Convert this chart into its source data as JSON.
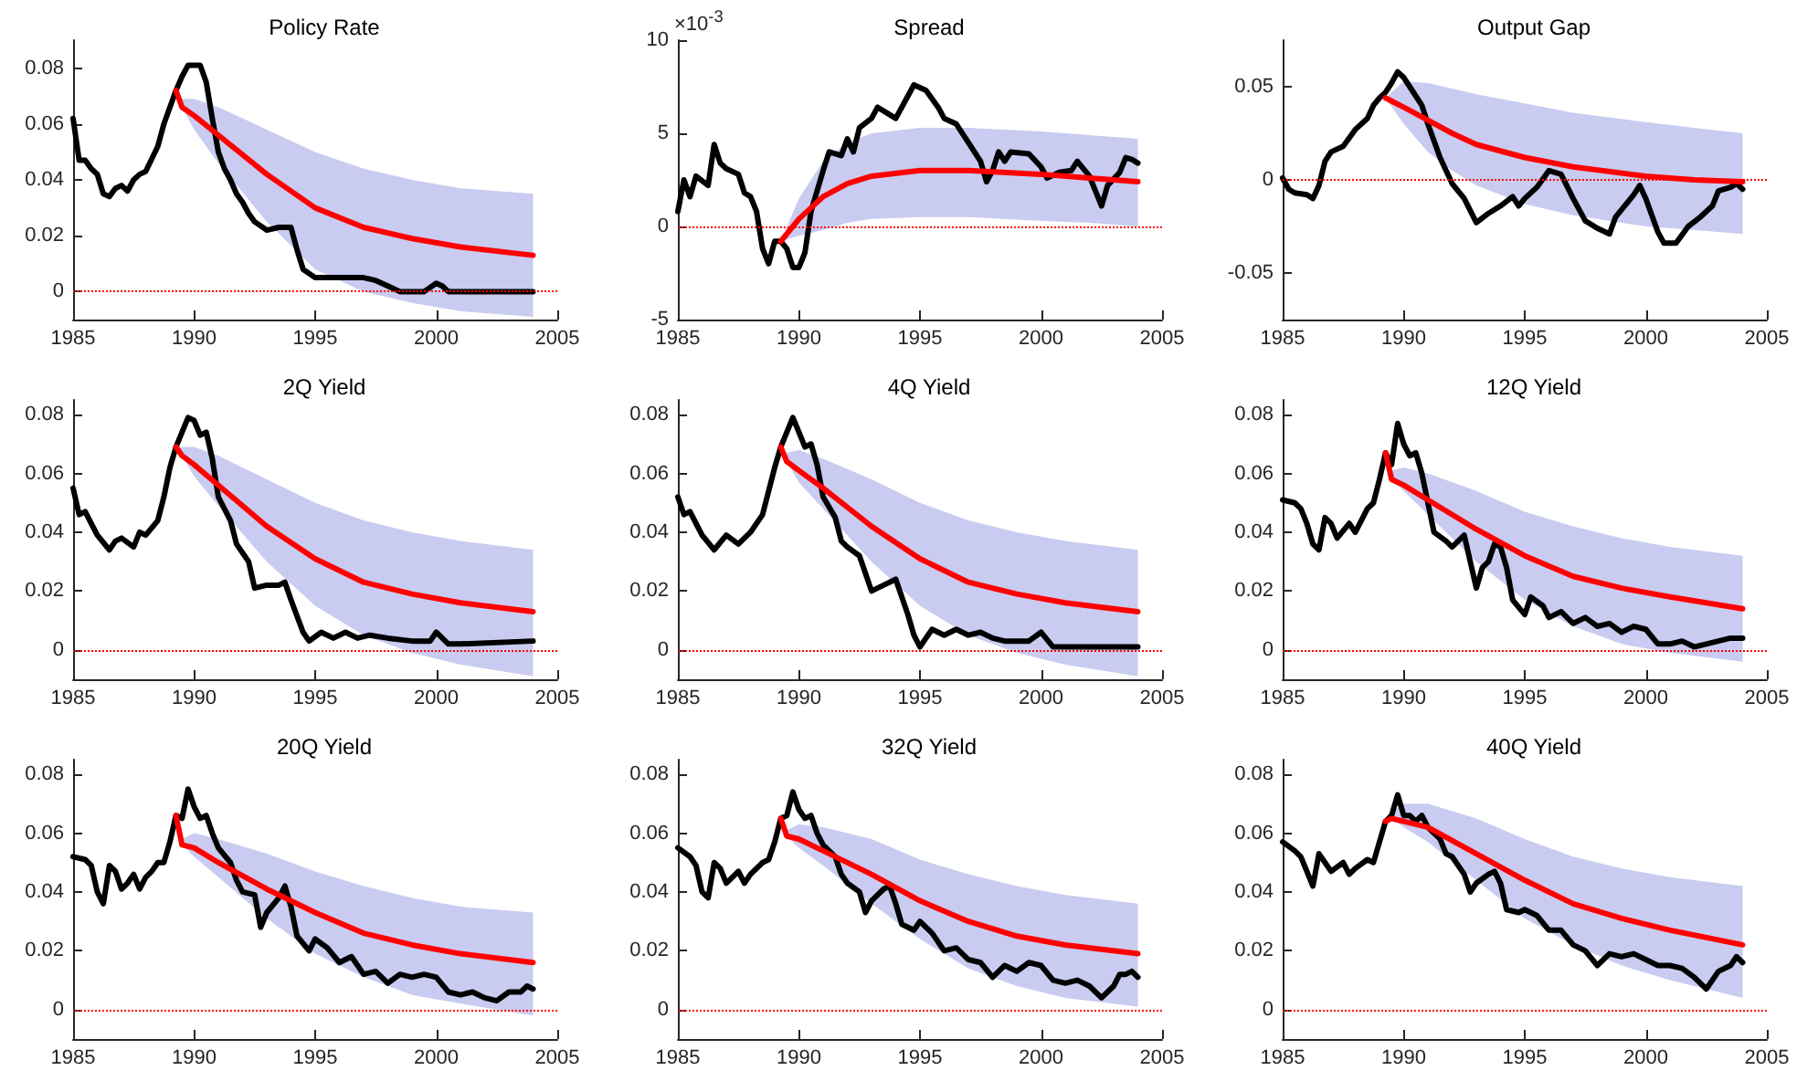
{
  "chart_data": [
    {
      "type": "line",
      "title": "Policy Rate",
      "xlim": [
        1985,
        2005
      ],
      "xticks": [
        1985,
        1990,
        1995,
        2000,
        2005
      ],
      "ylim": [
        -0.01,
        0.09
      ],
      "yticks": [
        0,
        0.02,
        0.04,
        0.06,
        0.08
      ],
      "marker": "none",
      "line_style": "solid",
      "ref_lines": [
        {
          "axis": "y",
          "value": 0,
          "color": "#ff0000",
          "line_style": "dotted"
        }
      ],
      "series": [
        {
          "color": "#000000",
          "x": [
            1985,
            1985.25,
            1985.5,
            1985.75,
            1986,
            1986.25,
            1986.5,
            1986.75,
            1987,
            1987.25,
            1987.5,
            1987.75,
            1988,
            1988.5,
            1988.75,
            1989,
            1989.25,
            1989.5,
            1989.75,
            1990.25,
            1990.5,
            1990.75,
            1991,
            1991.25,
            1991.5,
            1991.75,
            1992,
            1992.25,
            1992.5,
            1993,
            1993.5,
            1994,
            1994.25,
            1994.5,
            1995,
            1996,
            1997,
            1997.5,
            1998,
            1998.5,
            1999,
            1999.5,
            2000,
            2000.25,
            2000.5,
            2001,
            2004
          ],
          "values": [
            0.062,
            0.047,
            0.047,
            0.044,
            0.042,
            0.035,
            0.034,
            0.037,
            0.038,
            0.036,
            0.04,
            0.042,
            0.043,
            0.052,
            0.06,
            0.066,
            0.072,
            0.077,
            0.081,
            0.081,
            0.075,
            0.062,
            0.05,
            0.044,
            0.04,
            0.035,
            0.032,
            0.028,
            0.025,
            0.022,
            0.023,
            0.023,
            0.015,
            0.008,
            0.005,
            0.005,
            0.005,
            0.004,
            0.002,
            0,
            0,
            0,
            0.003,
            0.002,
            0,
            0,
            0
          ]
        },
        {
          "color": "#ff0000",
          "x": [
            1989.25,
            1989.5,
            1990,
            1991,
            1993,
            1995,
            1997,
            1999,
            2001,
            2004
          ],
          "values": [
            0.072,
            0.066,
            0.063,
            0.056,
            0.042,
            0.03,
            0.023,
            0.019,
            0.016,
            0.013
          ],
          "lower": [
            0.072,
            0.066,
            0.058,
            0.046,
            0.025,
            0.008,
            0,
            -0.004,
            -0.007,
            -0.009
          ],
          "upper": [
            0.072,
            0.069,
            0.069,
            0.066,
            0.058,
            0.05,
            0.044,
            0.04,
            0.037,
            0.035
          ]
        }
      ]
    },
    {
      "type": "line",
      "title": "Spread",
      "annotations": [
        "×10$^{-3}$"
      ],
      "xlim": [
        1985,
        2005
      ],
      "xticks": [
        1985,
        1990,
        1995,
        2000,
        2005
      ],
      "ylim": [
        -5,
        10
      ],
      "yticks": [
        -5,
        0,
        5,
        10
      ],
      "marker": "none",
      "line_style": "solid",
      "ref_lines": [
        {
          "axis": "y",
          "value": 0,
          "color": "#ff0000",
          "line_style": "dotted"
        }
      ],
      "series": [
        {
          "color": "#000000",
          "x": [
            1985,
            1985.25,
            1985.5,
            1985.75,
            1986.25,
            1986.5,
            1986.75,
            1987,
            1987.5,
            1987.75,
            1988,
            1988.25,
            1988.5,
            1988.75,
            1989,
            1989.25,
            1989.5,
            1989.75,
            1990,
            1990.25,
            1990.5,
            1991,
            1991.25,
            1991.75,
            1992,
            1992.25,
            1992.5,
            1993,
            1993.25,
            1993.75,
            1994,
            1994.5,
            1994.75,
            1995.25,
            1995.75,
            1996,
            1996.5,
            1997,
            1997.5,
            1997.75,
            1998,
            1998.25,
            1998.5,
            1998.75,
            1999.5,
            2000,
            2000.25,
            2000.75,
            2001.25,
            2001.5,
            2002,
            2002.5,
            2002.75,
            2003.25,
            2003.5,
            2003.75,
            2004
          ],
          "values": [
            0.8,
            2.5,
            1.6,
            2.7,
            2.2,
            4.4,
            3.4,
            3.1,
            2.8,
            1.8,
            1.6,
            0.8,
            -1.2,
            -2,
            -0.8,
            -0.8,
            -1.2,
            -2.2,
            -2.2,
            -1.4,
            0.8,
            3,
            4,
            3.8,
            4.7,
            4,
            5.3,
            5.8,
            6.4,
            6,
            5.8,
            7,
            7.6,
            7.3,
            6.4,
            5.8,
            5.5,
            4.5,
            3.5,
            2.4,
            3,
            4,
            3.5,
            4,
            3.9,
            3.2,
            2.6,
            2.9,
            3,
            3.5,
            2.7,
            1.1,
            2.2,
            2.9,
            3.7,
            3.6,
            3.4
          ]
        },
        {
          "color": "#ff0000",
          "x": [
            1989.25,
            1990,
            1991,
            1992,
            1993,
            1995,
            1997,
            2000,
            2002,
            2004
          ],
          "values": [
            -0.8,
            0.4,
            1.6,
            2.3,
            2.7,
            3,
            3,
            2.8,
            2.6,
            2.4
          ],
          "lower": [
            -0.8,
            -0.5,
            -0.2,
            0.2,
            0.4,
            0.5,
            0.5,
            0.3,
            0.2,
            0
          ],
          "upper": [
            -0.8,
            1.5,
            3.5,
            4.5,
            5,
            5.3,
            5.3,
            5.1,
            4.9,
            4.7
          ]
        }
      ]
    },
    {
      "type": "line",
      "title": "Output Gap",
      "xlim": [
        1985,
        2005
      ],
      "xticks": [
        1985,
        1990,
        1995,
        2000,
        2005
      ],
      "ylim": [
        -0.075,
        0.075
      ],
      "yticks": [
        -0.05,
        0,
        0.05
      ],
      "marker": "none",
      "line_style": "solid",
      "ref_lines": [
        {
          "axis": "y",
          "value": 0,
          "color": "#ff0000",
          "line_style": "dotted"
        }
      ],
      "series": [
        {
          "color": "#000000",
          "x": [
            1985,
            1985.25,
            1985.5,
            1986,
            1986.25,
            1986.5,
            1986.75,
            1987,
            1987.5,
            1988,
            1988.5,
            1988.75,
            1989,
            1989.25,
            1989.5,
            1989.75,
            1990,
            1990.25,
            1990.75,
            1991,
            1991.5,
            1992,
            1992.5,
            1993,
            1993.5,
            1994,
            1994.5,
            1994.75,
            1995,
            1995.5,
            1996,
            1996.5,
            1997,
            1997.5,
            1998,
            1998.5,
            1998.75,
            1999,
            1999.5,
            1999.75,
            2000,
            2000.5,
            2000.75,
            2001.25,
            2001.75,
            2002.25,
            2002.75,
            2003,
            2003.5,
            2003.75,
            2004
          ],
          "values": [
            0.001,
            -0.005,
            -0.007,
            -0.008,
            -0.01,
            -0.003,
            0.01,
            0.015,
            0.018,
            0.027,
            0.033,
            0.04,
            0.044,
            0.047,
            0.052,
            0.058,
            0.055,
            0.05,
            0.04,
            0.03,
            0.012,
            -0.002,
            -0.01,
            -0.023,
            -0.018,
            -0.014,
            -0.009,
            -0.014,
            -0.01,
            -0.004,
            0.005,
            0.003,
            -0.01,
            -0.022,
            -0.026,
            -0.029,
            -0.02,
            -0.016,
            -0.008,
            -0.003,
            -0.01,
            -0.028,
            -0.034,
            -0.034,
            -0.025,
            -0.02,
            -0.014,
            -0.006,
            -0.004,
            -0.002,
            -0.005
          ]
        },
        {
          "color": "#ff0000",
          "x": [
            1989.25,
            1990,
            1991,
            1992,
            1993,
            1995,
            1997,
            2000,
            2002,
            2004
          ],
          "values": [
            0.044,
            0.039,
            0.032,
            0.025,
            0.019,
            0.012,
            0.007,
            0.002,
            0,
            -0.001
          ],
          "lower": [
            0.044,
            0.03,
            0.015,
            0.005,
            -0.003,
            -0.013,
            -0.019,
            -0.025,
            -0.027,
            -0.029
          ],
          "upper": [
            0.044,
            0.053,
            0.052,
            0.049,
            0.046,
            0.041,
            0.036,
            0.031,
            0.028,
            0.025
          ]
        }
      ]
    },
    {
      "type": "line",
      "title": "2Q Yield",
      "xlim": [
        1985,
        2005
      ],
      "xticks": [
        1985,
        1990,
        1995,
        2000,
        2005
      ],
      "ylim": [
        -0.01,
        0.085
      ],
      "yticks": [
        0,
        0.02,
        0.04,
        0.06,
        0.08
      ],
      "marker": "none",
      "line_style": "solid",
      "ref_lines": [
        {
          "axis": "y",
          "value": 0,
          "color": "#ff0000",
          "line_style": "dotted"
        }
      ],
      "series": [
        {
          "color": "#000000",
          "x": [
            1985,
            1985.25,
            1985.5,
            1985.75,
            1986,
            1986.5,
            1986.75,
            1987,
            1987.5,
            1987.75,
            1988,
            1988.5,
            1988.75,
            1989,
            1989.25,
            1989.5,
            1989.75,
            1990,
            1990.25,
            1990.5,
            1990.75,
            1991,
            1991.5,
            1991.75,
            1992,
            1992.25,
            1992.5,
            1993,
            1993.5,
            1993.75,
            1994,
            1994.5,
            1994.75,
            1995.25,
            1995.75,
            1996.25,
            1996.75,
            1997.25,
            1998,
            1999,
            1999.75,
            2000,
            2000.5,
            2001,
            2004
          ],
          "values": [
            0.055,
            0.046,
            0.047,
            0.043,
            0.039,
            0.034,
            0.037,
            0.038,
            0.035,
            0.04,
            0.039,
            0.044,
            0.052,
            0.062,
            0.069,
            0.074,
            0.079,
            0.078,
            0.073,
            0.074,
            0.065,
            0.052,
            0.044,
            0.036,
            0.033,
            0.03,
            0.021,
            0.022,
            0.022,
            0.023,
            0.017,
            0.006,
            0.003,
            0.006,
            0.004,
            0.006,
            0.004,
            0.005,
            0.004,
            0.003,
            0.003,
            0.006,
            0.002,
            0.002,
            0.003
          ]
        },
        {
          "color": "#ff0000",
          "x": [
            1989.25,
            1989.5,
            1990,
            1991,
            1993,
            1995,
            1997,
            1999,
            2001,
            2004
          ],
          "values": [
            0.069,
            0.066,
            0.063,
            0.056,
            0.042,
            0.031,
            0.023,
            0.019,
            0.016,
            0.013
          ],
          "lower": [
            0.069,
            0.066,
            0.059,
            0.049,
            0.03,
            0.015,
            0.005,
            -0.001,
            -0.005,
            -0.009
          ],
          "upper": [
            0.069,
            0.069,
            0.069,
            0.066,
            0.058,
            0.05,
            0.044,
            0.04,
            0.037,
            0.034
          ]
        }
      ]
    },
    {
      "type": "line",
      "title": "4Q Yield",
      "xlim": [
        1985,
        2005
      ],
      "xticks": [
        1985,
        1990,
        1995,
        2000,
        2005
      ],
      "ylim": [
        -0.01,
        0.085
      ],
      "yticks": [
        0,
        0.02,
        0.04,
        0.06,
        0.08
      ],
      "marker": "none",
      "line_style": "solid",
      "ref_lines": [
        {
          "axis": "y",
          "value": 0,
          "color": "#ff0000",
          "line_style": "dotted"
        }
      ],
      "series": [
        {
          "color": "#000000",
          "x": [
            1985,
            1985.25,
            1985.5,
            1986,
            1986.5,
            1987,
            1987.5,
            1988,
            1988.5,
            1988.75,
            1989,
            1989.25,
            1989.5,
            1989.75,
            1990,
            1990.25,
            1990.5,
            1990.75,
            1991,
            1991.5,
            1991.75,
            1992,
            1992.5,
            1993,
            1993.5,
            1994,
            1994.5,
            1994.75,
            1995,
            1995.5,
            1996,
            1996.5,
            1997,
            1997.5,
            1998,
            1998.5,
            1999.5,
            2000,
            2000.5,
            2004
          ],
          "values": [
            0.052,
            0.046,
            0.047,
            0.039,
            0.034,
            0.039,
            0.036,
            0.04,
            0.046,
            0.054,
            0.062,
            0.069,
            0.074,
            0.079,
            0.074,
            0.069,
            0.07,
            0.063,
            0.052,
            0.045,
            0.037,
            0.035,
            0.032,
            0.02,
            0.022,
            0.024,
            0.012,
            0.005,
            0.001,
            0.007,
            0.005,
            0.007,
            0.005,
            0.006,
            0.004,
            0.003,
            0.003,
            0.006,
            0.001,
            0.001
          ]
        },
        {
          "color": "#ff0000",
          "x": [
            1989.25,
            1989.5,
            1990,
            1991,
            1993,
            1995,
            1997,
            1999,
            2001,
            2004
          ],
          "values": [
            0.069,
            0.064,
            0.061,
            0.055,
            0.042,
            0.031,
            0.023,
            0.019,
            0.016,
            0.013
          ],
          "lower": [
            0.069,
            0.064,
            0.057,
            0.048,
            0.03,
            0.015,
            0.005,
            -0.001,
            -0.005,
            -0.009
          ],
          "upper": [
            0.069,
            0.067,
            0.068,
            0.065,
            0.058,
            0.05,
            0.044,
            0.04,
            0.037,
            0.034
          ]
        }
      ]
    },
    {
      "type": "line",
      "title": "12Q Yield",
      "xlim": [
        1985,
        2005
      ],
      "xticks": [
        1985,
        1990,
        1995,
        2000,
        2005
      ],
      "ylim": [
        -0.01,
        0.085
      ],
      "yticks": [
        0,
        0.02,
        0.04,
        0.06,
        0.08
      ],
      "marker": "none",
      "line_style": "solid",
      "ref_lines": [
        {
          "axis": "y",
          "value": 0,
          "color": "#ff0000",
          "line_style": "dotted"
        }
      ],
      "series": [
        {
          "color": "#000000",
          "x": [
            1985,
            1985.5,
            1985.75,
            1986,
            1986.25,
            1986.5,
            1986.75,
            1987,
            1987.25,
            1987.75,
            1988,
            1988.25,
            1988.5,
            1988.75,
            1989,
            1989.25,
            1989.5,
            1989.75,
            1990,
            1990.25,
            1990.5,
            1990.75,
            1991,
            1991.25,
            1991.75,
            1992,
            1992.5,
            1993,
            1993.25,
            1993.5,
            1993.75,
            1994,
            1994.25,
            1994.5,
            1995,
            1995.25,
            1995.75,
            1996,
            1996.5,
            1997,
            1997.5,
            1998,
            1998.5,
            1999,
            1999.5,
            2000,
            2000.5,
            2001,
            2001.5,
            2002,
            2003,
            2003.5,
            2004
          ],
          "values": [
            0.051,
            0.05,
            0.048,
            0.043,
            0.036,
            0.034,
            0.045,
            0.043,
            0.038,
            0.043,
            0.04,
            0.044,
            0.048,
            0.05,
            0.058,
            0.067,
            0.063,
            0.077,
            0.07,
            0.066,
            0.067,
            0.06,
            0.05,
            0.04,
            0.037,
            0.035,
            0.039,
            0.021,
            0.028,
            0.03,
            0.036,
            0.035,
            0.028,
            0.017,
            0.012,
            0.018,
            0.015,
            0.011,
            0.013,
            0.009,
            0.011,
            0.008,
            0.009,
            0.006,
            0.008,
            0.007,
            0.002,
            0.002,
            0.003,
            0.001,
            0.003,
            0.004,
            0.004
          ]
        },
        {
          "color": "#ff0000",
          "x": [
            1989.25,
            1989.5,
            1990,
            1991,
            1993,
            1995,
            1997,
            1999,
            2001,
            2004
          ],
          "values": [
            0.067,
            0.058,
            0.056,
            0.051,
            0.041,
            0.032,
            0.025,
            0.021,
            0.018,
            0.014
          ],
          "lower": [
            0.067,
            0.058,
            0.054,
            0.046,
            0.03,
            0.017,
            0.008,
            0.002,
            -0.001,
            -0.004
          ],
          "upper": [
            0.067,
            0.061,
            0.062,
            0.06,
            0.054,
            0.047,
            0.042,
            0.038,
            0.035,
            0.032
          ]
        }
      ]
    },
    {
      "type": "line",
      "title": "20Q Yield",
      "xlim": [
        1985,
        2005
      ],
      "xticks": [
        1985,
        1990,
        1995,
        2000,
        2005
      ],
      "ylim": [
        -0.01,
        0.085
      ],
      "yticks": [
        0,
        0.02,
        0.04,
        0.06,
        0.08
      ],
      "marker": "none",
      "line_style": "solid",
      "ref_lines": [
        {
          "axis": "y",
          "value": 0,
          "color": "#ff0000",
          "line_style": "dotted"
        }
      ],
      "series": [
        {
          "color": "#000000",
          "x": [
            1985,
            1985.5,
            1985.75,
            1986,
            1986.25,
            1986.5,
            1986.75,
            1987,
            1987.25,
            1987.5,
            1987.75,
            1988,
            1988.25,
            1988.5,
            1988.75,
            1989,
            1989.25,
            1989.5,
            1989.75,
            1990,
            1990.25,
            1990.5,
            1990.75,
            1991,
            1991.5,
            1991.75,
            1992,
            1992.5,
            1992.75,
            1993,
            1993.5,
            1993.75,
            1994,
            1994.25,
            1994.75,
            1995,
            1995.5,
            1996,
            1996.5,
            1997,
            1997.5,
            1998,
            1998.5,
            1999,
            1999.5,
            2000,
            2000.5,
            2001,
            2001.5,
            2002,
            2002.5,
            2003,
            2003.5,
            2003.75,
            2004
          ],
          "values": [
            0.052,
            0.051,
            0.049,
            0.04,
            0.036,
            0.049,
            0.047,
            0.041,
            0.043,
            0.046,
            0.041,
            0.045,
            0.047,
            0.05,
            0.05,
            0.057,
            0.066,
            0.065,
            0.075,
            0.069,
            0.065,
            0.066,
            0.06,
            0.055,
            0.05,
            0.044,
            0.04,
            0.039,
            0.028,
            0.033,
            0.038,
            0.042,
            0.035,
            0.025,
            0.02,
            0.024,
            0.021,
            0.016,
            0.018,
            0.012,
            0.013,
            0.009,
            0.012,
            0.011,
            0.012,
            0.011,
            0.006,
            0.005,
            0.006,
            0.004,
            0.003,
            0.006,
            0.006,
            0.008,
            0.007
          ]
        },
        {
          "color": "#ff0000",
          "x": [
            1989.25,
            1989.5,
            1990,
            1991,
            1993,
            1995,
            1997,
            1999,
            2001,
            2004
          ],
          "values": [
            0.066,
            0.056,
            0.055,
            0.05,
            0.041,
            0.033,
            0.026,
            0.022,
            0.019,
            0.016
          ],
          "lower": [
            0.066,
            0.056,
            0.052,
            0.045,
            0.031,
            0.019,
            0.011,
            0.005,
            0.002,
            -0.002
          ],
          "upper": [
            0.066,
            0.058,
            0.06,
            0.058,
            0.053,
            0.047,
            0.042,
            0.038,
            0.035,
            0.033
          ]
        }
      ]
    },
    {
      "type": "line",
      "title": "32Q Yield",
      "xlim": [
        1985,
        2005
      ],
      "xticks": [
        1985,
        1990,
        1995,
        2000,
        2005
      ],
      "ylim": [
        -0.01,
        0.085
      ],
      "yticks": [
        0,
        0.02,
        0.04,
        0.06,
        0.08
      ],
      "marker": "none",
      "line_style": "solid",
      "ref_lines": [
        {
          "axis": "y",
          "value": 0,
          "color": "#ff0000",
          "line_style": "dotted"
        }
      ],
      "series": [
        {
          "color": "#000000",
          "x": [
            1985,
            1985.5,
            1985.75,
            1986,
            1986.25,
            1986.5,
            1986.75,
            1987,
            1987.5,
            1987.75,
            1988,
            1988.5,
            1988.75,
            1989,
            1989.25,
            1989.5,
            1989.75,
            1990,
            1990.25,
            1990.5,
            1990.75,
            1991,
            1991.5,
            1991.75,
            1992,
            1992.5,
            1992.75,
            1993,
            1993.5,
            1993.75,
            1994,
            1994.25,
            1994.75,
            1995,
            1995.5,
            1996,
            1996.5,
            1997,
            1997.5,
            1998,
            1998.5,
            1999,
            1999.5,
            2000,
            2000.5,
            2001,
            2001.5,
            2002,
            2002.5,
            2003,
            2003.25,
            2003.5,
            2003.75,
            2004
          ],
          "values": [
            0.055,
            0.052,
            0.049,
            0.04,
            0.038,
            0.05,
            0.048,
            0.043,
            0.047,
            0.043,
            0.046,
            0.05,
            0.051,
            0.057,
            0.065,
            0.066,
            0.074,
            0.068,
            0.065,
            0.066,
            0.06,
            0.056,
            0.052,
            0.046,
            0.043,
            0.04,
            0.033,
            0.037,
            0.041,
            0.042,
            0.036,
            0.029,
            0.027,
            0.03,
            0.026,
            0.02,
            0.021,
            0.017,
            0.016,
            0.011,
            0.015,
            0.013,
            0.016,
            0.015,
            0.01,
            0.009,
            0.01,
            0.008,
            0.004,
            0.008,
            0.012,
            0.012,
            0.013,
            0.011
          ]
        },
        {
          "color": "#ff0000",
          "x": [
            1989.25,
            1989.5,
            1990,
            1991,
            1993,
            1995,
            1997,
            1999,
            2001,
            2004
          ],
          "values": [
            0.065,
            0.059,
            0.058,
            0.054,
            0.046,
            0.037,
            0.03,
            0.025,
            0.022,
            0.019
          ],
          "lower": [
            0.065,
            0.059,
            0.055,
            0.049,
            0.036,
            0.024,
            0.014,
            0.008,
            0.004,
            0.001
          ],
          "upper": [
            0.065,
            0.061,
            0.063,
            0.062,
            0.058,
            0.051,
            0.046,
            0.042,
            0.039,
            0.036
          ]
        }
      ]
    },
    {
      "type": "line",
      "title": "40Q Yield",
      "xlim": [
        1985,
        2005
      ],
      "xticks": [
        1985,
        1990,
        1995,
        2000,
        2005
      ],
      "ylim": [
        -0.01,
        0.085
      ],
      "yticks": [
        0,
        0.02,
        0.04,
        0.06,
        0.08
      ],
      "marker": "none",
      "line_style": "solid",
      "ref_lines": [
        {
          "axis": "y",
          "value": 0,
          "color": "#ff0000",
          "line_style": "dotted"
        }
      ],
      "series": [
        {
          "color": "#000000",
          "x": [
            1985,
            1985.5,
            1985.75,
            1986,
            1986.25,
            1986.5,
            1986.75,
            1987,
            1987.5,
            1987.75,
            1988,
            1988.5,
            1988.75,
            1989,
            1989.25,
            1989.5,
            1989.75,
            1990,
            1990.25,
            1990.5,
            1990.75,
            1991,
            1991.5,
            1991.75,
            1992,
            1992.5,
            1992.75,
            1993,
            1993.5,
            1993.75,
            1994,
            1994.25,
            1994.75,
            1995,
            1995.5,
            1996,
            1996.5,
            1997,
            1997.5,
            1998,
            1998.5,
            1999,
            1999.5,
            2000,
            2000.5,
            2001,
            2001.5,
            2002,
            2002.5,
            2003,
            2003.5,
            2003.75,
            2004
          ],
          "values": [
            0.057,
            0.054,
            0.052,
            0.047,
            0.042,
            0.053,
            0.05,
            0.047,
            0.05,
            0.046,
            0.048,
            0.051,
            0.05,
            0.057,
            0.064,
            0.066,
            0.073,
            0.066,
            0.066,
            0.064,
            0.066,
            0.062,
            0.058,
            0.053,
            0.052,
            0.046,
            0.04,
            0.043,
            0.046,
            0.047,
            0.043,
            0.034,
            0.033,
            0.034,
            0.032,
            0.027,
            0.027,
            0.022,
            0.02,
            0.015,
            0.019,
            0.018,
            0.019,
            0.017,
            0.015,
            0.015,
            0.014,
            0.011,
            0.007,
            0.013,
            0.015,
            0.018,
            0.016
          ]
        },
        {
          "color": "#ff0000",
          "x": [
            1989.25,
            1989.5,
            1990,
            1991,
            1993,
            1995,
            1997,
            1999,
            2001,
            2004
          ],
          "values": [
            0.064,
            0.065,
            0.064,
            0.062,
            0.053,
            0.044,
            0.036,
            0.031,
            0.027,
            0.022
          ],
          "lower": [
            0.064,
            0.065,
            0.062,
            0.057,
            0.044,
            0.031,
            0.022,
            0.015,
            0.01,
            0.004
          ],
          "upper": [
            0.064,
            0.067,
            0.07,
            0.07,
            0.065,
            0.058,
            0.052,
            0.048,
            0.045,
            0.042
          ]
        }
      ]
    }
  ]
}
